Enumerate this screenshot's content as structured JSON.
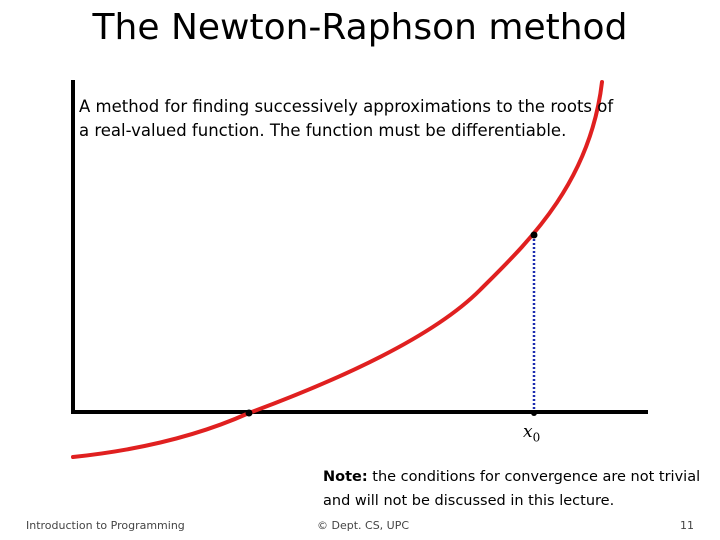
{
  "slide": {
    "title": "The Newton-Raphson method",
    "description": "A method for finding successively approximations to the roots of a real-valued function. The function must be differentiable.",
    "note_bold": "Note:",
    "note_text": " the conditions for convergence are not trivial and will not be discussed in this lecture."
  },
  "diagram": {
    "x_label_var": "x",
    "x_label_sub": "0",
    "colors": {
      "curve": "#e02020",
      "axes": "#000000",
      "tangent_drop": "#1a2ab0"
    }
  },
  "footer": {
    "left": "Introduction to Programming",
    "center": "© Dept. CS, UPC",
    "page": "11"
  }
}
